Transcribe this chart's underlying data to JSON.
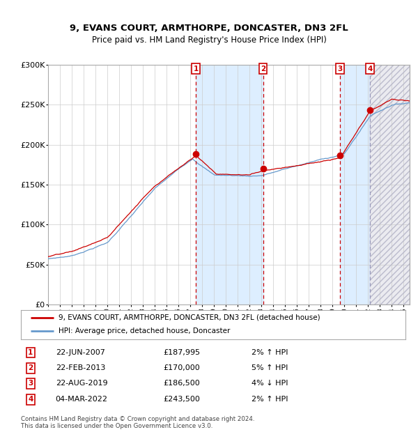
{
  "title": "9, EVANS COURT, ARMTHORPE, DONCASTER, DN3 2FL",
  "subtitle": "Price paid vs. HM Land Registry's House Price Index (HPI)",
  "legend_line1": "9, EVANS COURT, ARMTHORPE, DONCASTER, DN3 2FL (detached house)",
  "legend_line2": "HPI: Average price, detached house, Doncaster",
  "table_entries": [
    {
      "num": "1",
      "date": "22-JUN-2007",
      "price": "£187,995",
      "pct": "2%",
      "dir": "↑",
      "label": "HPI"
    },
    {
      "num": "2",
      "date": "22-FEB-2013",
      "price": "£170,000",
      "pct": "5%",
      "dir": "↑",
      "label": "HPI"
    },
    {
      "num": "3",
      "date": "22-AUG-2019",
      "price": "£186,500",
      "pct": "4%",
      "dir": "↓",
      "label": "HPI"
    },
    {
      "num": "4",
      "date": "04-MAR-2022",
      "price": "£243,500",
      "pct": "2%",
      "dir": "↑",
      "label": "HPI"
    }
  ],
  "footnote1": "Contains HM Land Registry data © Crown copyright and database right 2024.",
  "footnote2": "This data is licensed under the Open Government Licence v3.0.",
  "sale_dates_num": [
    2007.47,
    2013.13,
    2019.64,
    2022.17
  ],
  "sale_prices": [
    187995,
    170000,
    186500,
    243500
  ],
  "shade_ranges": [
    [
      2007.47,
      2013.13
    ],
    [
      2019.64,
      2022.17
    ]
  ],
  "hatch_range": [
    2022.17,
    2025.5
  ],
  "ylim": [
    0,
    300000
  ],
  "xlim_start": 1995.0,
  "xlim_end": 2025.5,
  "red_line_color": "#cc0000",
  "blue_line_color": "#6699cc",
  "shade_color": "#ddeeff",
  "background_color": "#ffffff",
  "grid_color": "#cccccc",
  "vline_color": "#cc0000",
  "vline4_color": "#9999bb",
  "key_years_hpi": [
    1995,
    1997,
    2000,
    2004,
    2007.2,
    2009.0,
    2012,
    2013,
    2016,
    2020,
    2022.2,
    2024,
    2025.5
  ],
  "key_vals_hpi": [
    57000,
    61000,
    78000,
    145000,
    183000,
    163000,
    162000,
    163000,
    175000,
    190000,
    238000,
    252000,
    255000
  ],
  "key_years_red": [
    1995,
    1997,
    2000,
    2004,
    2007.47,
    2009.2,
    2012,
    2013.13,
    2016,
    2019.64,
    2022.17,
    2024,
    2025.5
  ],
  "key_vals_red": [
    60000,
    65000,
    82000,
    148000,
    187995,
    165000,
    164000,
    170000,
    178000,
    186500,
    243500,
    258000,
    256000
  ]
}
